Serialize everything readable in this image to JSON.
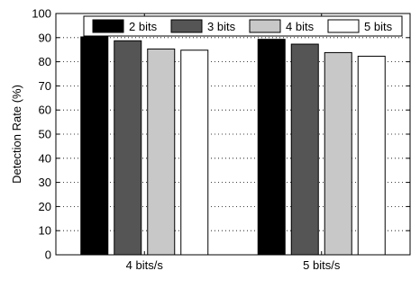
{
  "chart_data": {
    "type": "bar",
    "categories": [
      "4 bits/s",
      "5 bits/s"
    ],
    "series": [
      {
        "name": "2 bits",
        "values": [
          90.3,
          89.3
        ],
        "color": "#000000"
      },
      {
        "name": "3 bits",
        "values": [
          88.7,
          87.3
        ],
        "color": "#555555"
      },
      {
        "name": "4 bits",
        "values": [
          85.3,
          83.8
        ],
        "color": "#c8c8c8"
      },
      {
        "name": "5 bits",
        "values": [
          84.8,
          82.3
        ],
        "color": "#ffffff"
      }
    ],
    "ylabel": "Detection Rate (%)",
    "xlabel": "",
    "ylim": [
      0,
      100
    ],
    "yticks": [
      0,
      10,
      20,
      30,
      40,
      50,
      60,
      70,
      80,
      90,
      100
    ],
    "grid": true,
    "legend_position": "top"
  }
}
